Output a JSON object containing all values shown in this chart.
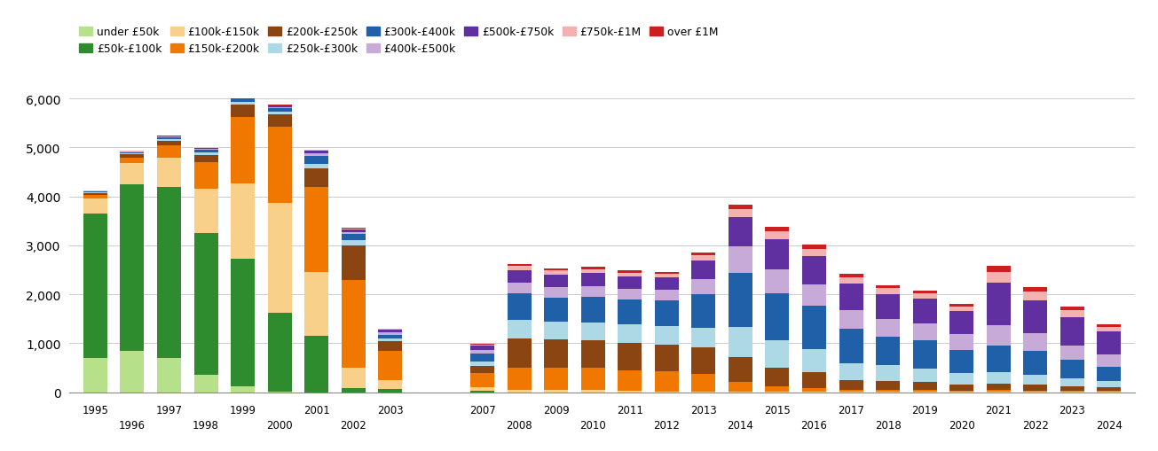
{
  "years": [
    1995,
    1996,
    1997,
    1998,
    1999,
    2000,
    2001,
    2002,
    2003,
    2007,
    2008,
    2009,
    2010,
    2011,
    2012,
    2013,
    2014,
    2015,
    2016,
    2017,
    2018,
    2019,
    2020,
    2021,
    2022,
    2023,
    2024
  ],
  "categories": [
    "under £50k",
    "£50k-£100k",
    "£100k-£150k",
    "£150k-£200k",
    "£200k-£250k",
    "£250k-£300k",
    "£300k-£400k",
    "£400k-£500k",
    "£500k-£750k",
    "£750k-£1M",
    "over £1M"
  ],
  "colors": [
    "#b7e08a",
    "#2e8b2e",
    "#f9d08a",
    "#f07800",
    "#8b4513",
    "#add8e6",
    "#2060a8",
    "#c8aad8",
    "#6030a0",
    "#f5b0b0",
    "#cc2020"
  ],
  "data": {
    "under £50k": [
      700,
      850,
      700,
      350,
      120,
      20,
      0,
      0,
      0,
      0,
      0,
      0,
      0,
      0,
      0,
      0,
      0,
      0,
      0,
      0,
      0,
      0,
      0,
      0,
      0,
      0,
      0
    ],
    "£50k-£100k": [
      2950,
      3400,
      3500,
      2900,
      2600,
      1600,
      1150,
      80,
      70,
      30,
      0,
      0,
      0,
      0,
      0,
      0,
      0,
      0,
      0,
      0,
      0,
      0,
      0,
      0,
      0,
      0,
      0
    ],
    "£100k-£150k": [
      300,
      430,
      600,
      900,
      1550,
      2250,
      1300,
      420,
      180,
      80,
      50,
      50,
      50,
      30,
      20,
      20,
      10,
      10,
      10,
      5,
      5,
      5,
      5,
      5,
      5,
      5,
      5
    ],
    "£150k-£200k": [
      80,
      120,
      240,
      550,
      1350,
      1550,
      1750,
      1800,
      600,
      280,
      450,
      450,
      450,
      420,
      400,
      350,
      200,
      120,
      80,
      50,
      50,
      40,
      30,
      40,
      30,
      25,
      20
    ],
    "£200k-£250k": [
      40,
      60,
      100,
      150,
      250,
      250,
      380,
      700,
      200,
      150,
      600,
      580,
      560,
      560,
      560,
      550,
      500,
      380,
      320,
      200,
      180,
      160,
      130,
      130,
      120,
      90,
      70
    ],
    "£250k-£300k": [
      15,
      25,
      35,
      50,
      70,
      65,
      90,
      100,
      40,
      80,
      370,
      360,
      370,
      370,
      380,
      400,
      620,
      560,
      480,
      340,
      320,
      280,
      220,
      230,
      210,
      160,
      130
    ],
    "£300k-£400k": [
      15,
      20,
      40,
      50,
      70,
      70,
      160,
      130,
      90,
      170,
      550,
      500,
      520,
      520,
      520,
      680,
      1100,
      950,
      870,
      700,
      580,
      580,
      480,
      550,
      480,
      380,
      300
    ],
    "£400k-£500k": [
      5,
      10,
      15,
      20,
      25,
      25,
      45,
      45,
      45,
      70,
      220,
      210,
      210,
      210,
      210,
      320,
      550,
      490,
      440,
      390,
      360,
      350,
      330,
      420,
      360,
      300,
      240
    ],
    "£500k-£750k": [
      5,
      8,
      12,
      15,
      20,
      22,
      55,
      55,
      50,
      90,
      260,
      260,
      270,
      260,
      260,
      380,
      600,
      610,
      580,
      540,
      510,
      490,
      460,
      870,
      680,
      580,
      480
    ],
    "£750k-£1M": [
      3,
      4,
      6,
      8,
      10,
      12,
      18,
      18,
      15,
      25,
      80,
      78,
      80,
      75,
      65,
      95,
      170,
      170,
      150,
      130,
      120,
      110,
      95,
      220,
      170,
      140,
      95
    ],
    "over £1M": [
      2,
      2,
      4,
      5,
      8,
      8,
      12,
      12,
      8,
      15,
      45,
      45,
      48,
      45,
      45,
      55,
      85,
      92,
      80,
      70,
      62,
      58,
      55,
      120,
      92,
      72,
      55
    ]
  },
  "ylim": [
    0,
    6000
  ],
  "yticks": [
    0,
    1000,
    2000,
    3000,
    4000,
    5000,
    6000
  ],
  "figsize": [
    13.05,
    5.1
  ],
  "dpi": 100,
  "bar_width": 0.65
}
